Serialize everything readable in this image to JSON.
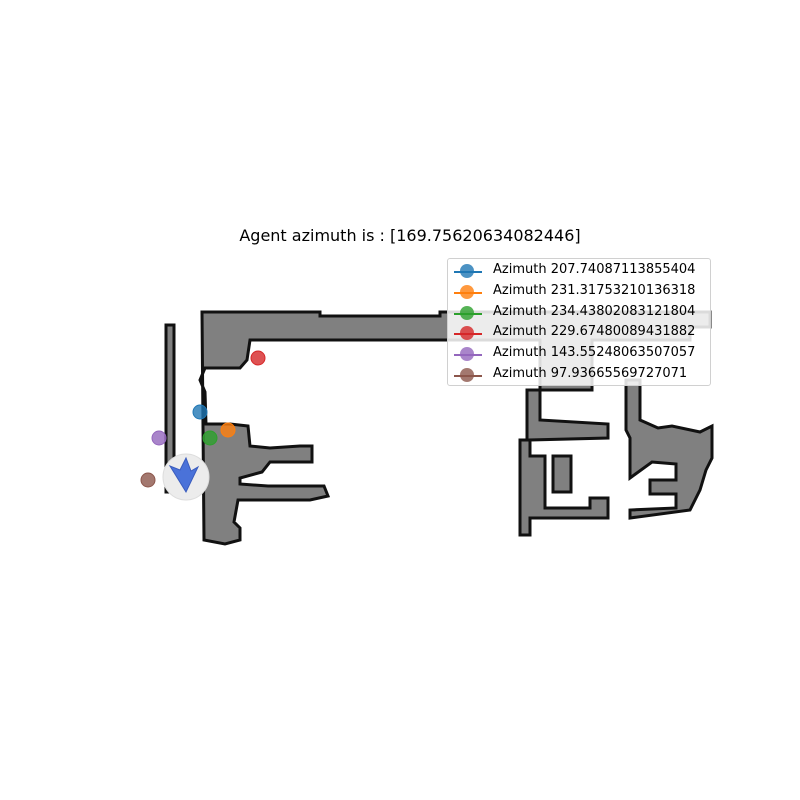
{
  "title": "Agent azimuth is : [169.75620634082446]",
  "agent": {
    "azimuth": 169.75620634082446,
    "icon": "agent-arrow-icon",
    "color": "#4a72d9"
  },
  "map_colors": {
    "free": "#808080",
    "wall": "#111111",
    "background": "#ffffff"
  },
  "candidates": [
    {
      "label": "Azimuth 207.74087113855404",
      "azimuth": 207.74087113855404,
      "color": "#1f77b4"
    },
    {
      "label": "Azimuth 231.31753210136318",
      "azimuth": 231.31753210136318,
      "color": "#ff7f0e"
    },
    {
      "label": "Azimuth 234.43802083121804",
      "azimuth": 234.43802083121804,
      "color": "#2ca02c"
    },
    {
      "label": "Azimuth 229.67480089431882",
      "azimuth": 229.67480089431882,
      "color": "#d62728"
    },
    {
      "label": "Azimuth 143.55248063507057",
      "azimuth": 143.55248063507057,
      "color": "#9467bd"
    },
    {
      "label": "Azimuth 97.93665569727071",
      "azimuth": 97.93665569727071,
      "color": "#8c564b"
    }
  ]
}
